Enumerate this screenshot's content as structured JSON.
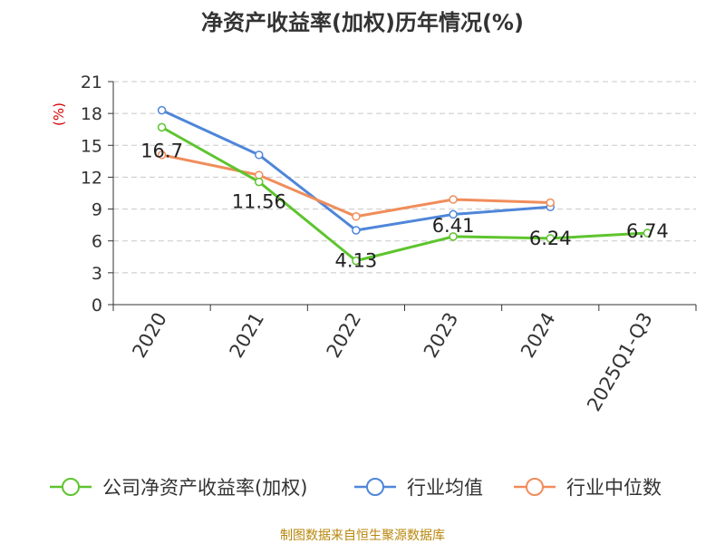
{
  "chart_data": {
    "type": "line",
    "title": "净资产收益率(加权)历年情况(%)",
    "ylabel": "(%)",
    "categories": [
      "2020",
      "2021",
      "2022",
      "2023",
      "2024",
      "2025Q1-Q3"
    ],
    "ylim": [
      0,
      21
    ],
    "yticks": [
      0,
      3,
      6,
      9,
      12,
      15,
      18,
      21
    ],
    "grid": true,
    "legend_position": "bottom",
    "series": [
      {
        "name": "公司净资产收益率(加权)",
        "color": "#5ec42e",
        "values": [
          16.7,
          11.56,
          4.13,
          6.41,
          6.24,
          6.74
        ],
        "labels": [
          "16.7",
          "11.56",
          "4.13",
          "6.41",
          "6.24",
          "6.74"
        ]
      },
      {
        "name": "行业均值",
        "color": "#4f86d9",
        "values": [
          18.3,
          14.1,
          7.0,
          8.5,
          9.2,
          null
        ]
      },
      {
        "name": "行业中位数",
        "color": "#f08d5b",
        "values": [
          14.1,
          12.2,
          8.3,
          9.9,
          9.6,
          null
        ]
      }
    ]
  },
  "source": "制图数据来自恒生聚源数据库"
}
